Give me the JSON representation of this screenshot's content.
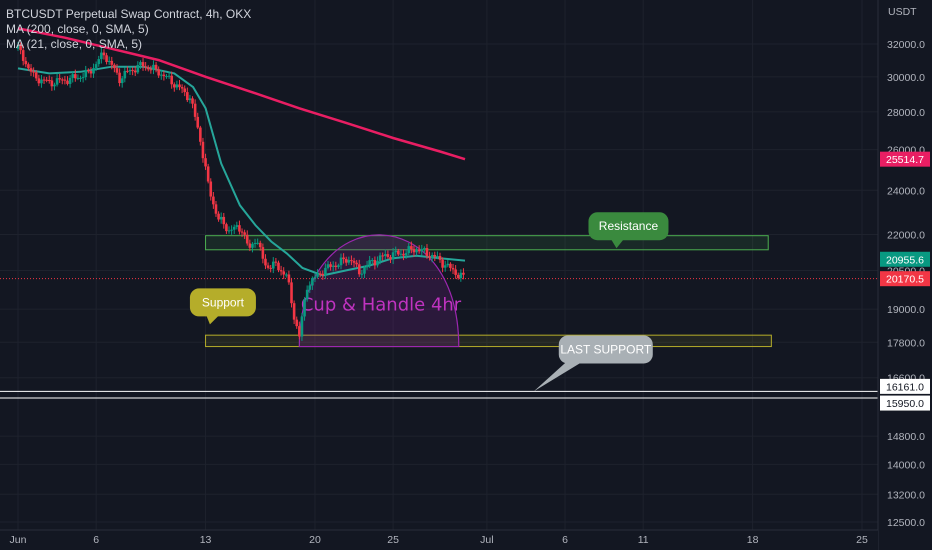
{
  "legend": {
    "symbol": "BTCUSDT Perpetual Swap Contract, 4h, OKX",
    "ma200": "MA (200, close, 0, SMA, 5)",
    "ma21": "MA (21, close, 0, SMA, 5)"
  },
  "price_axis": {
    "currency": "USDT",
    "ticks": [
      {
        "label": "32000.0",
        "value": 32000
      },
      {
        "label": "30000.0",
        "value": 30000
      },
      {
        "label": "28000.0",
        "value": 28000
      },
      {
        "label": "26000.0",
        "value": 26000
      },
      {
        "label": "24000.0",
        "value": 24000
      },
      {
        "label": "22000.0",
        "value": 22000
      },
      {
        "label": "20500.0",
        "value": 20500
      },
      {
        "label": "19000.0",
        "value": 19000
      },
      {
        "label": "17800.0",
        "value": 17800
      },
      {
        "label": "16600.0",
        "value": 16600
      },
      {
        "label": "14800.0",
        "value": 14800
      },
      {
        "label": "14000.0",
        "value": 14000
      },
      {
        "label": "13200.0",
        "value": 13200
      },
      {
        "label": "12500.0",
        "value": 12500
      }
    ],
    "badges": [
      {
        "label": "25514.7",
        "value": 25514.7,
        "bg": "#e91e63",
        "fg": "#ffffff"
      },
      {
        "label": "20955.6",
        "value": 20955.6,
        "bg": "#089981",
        "fg": "#ffffff"
      },
      {
        "label": "20170.5",
        "value": 20170.5,
        "bg": "#f23645",
        "fg": "#ffffff"
      },
      {
        "label": "16161.0",
        "value": 16161.0,
        "bg": "#ffffff",
        "fg": "#131722"
      },
      {
        "label": "15950.0",
        "value": 15950.0,
        "bg": "#ffffff",
        "fg": "#131722"
      }
    ]
  },
  "time_axis": {
    "ticks": [
      {
        "label": "Jun",
        "day": 1
      },
      {
        "label": "6",
        "day": 6
      },
      {
        "label": "13",
        "day": 13
      },
      {
        "label": "20",
        "day": 20
      },
      {
        "label": "25",
        "day": 25
      },
      {
        "label": "Jul",
        "day": 31
      },
      {
        "label": "6",
        "day": 36
      },
      {
        "label": "11",
        "day": 41
      },
      {
        "label": "18",
        "day": 48
      },
      {
        "label": "25",
        "day": 55
      }
    ]
  },
  "annotations": {
    "resistance": "Resistance",
    "support": "Support",
    "last_support": "LAST SUPPORT",
    "pattern": "Cup & Handle 4hr"
  },
  "levels": {
    "resistance_zone": [
      21350,
      21950
    ],
    "support_zone": [
      17650,
      18050
    ],
    "last_support_lines": [
      16161.0,
      15950.0
    ],
    "current_price": 20170.5
  },
  "colors": {
    "background": "#131722",
    "up": "#089981",
    "down": "#f23645",
    "ma200": "#e91e63",
    "ma21": "#26a69a",
    "resistance": "#3a8a3e",
    "support": "#b5ad2a",
    "last_support": "#a9b0b5",
    "cup": "#9c27b0"
  },
  "chart_data": {
    "type": "candlestick",
    "title": "BTCUSDT Perpetual Swap Contract, 4h, OKX",
    "ylabel": "USDT",
    "ylim": [
      12500,
      33600
    ],
    "scale": "log",
    "x_unit": "day of June 2022 (4h candles)",
    "xlim": [
      0,
      57.7
    ],
    "price_path": [
      [
        1.0,
        31700
      ],
      [
        2.0,
        30000
      ],
      [
        3.0,
        29650
      ],
      [
        4.5,
        29900
      ],
      [
        5.5,
        30200
      ],
      [
        6.5,
        31400
      ],
      [
        7.5,
        29900
      ],
      [
        8.2,
        30400
      ],
      [
        9.0,
        30700
      ],
      [
        10.0,
        30300
      ],
      [
        11.0,
        29600
      ],
      [
        12.0,
        28800
      ],
      [
        12.6,
        26800
      ],
      [
        13.2,
        24100
      ],
      [
        13.8,
        22700
      ],
      [
        14.5,
        22200
      ],
      [
        15.3,
        22300
      ],
      [
        15.8,
        21300
      ],
      [
        16.2,
        21900
      ],
      [
        16.8,
        20700
      ],
      [
        17.5,
        20700
      ],
      [
        18.2,
        20300
      ],
      [
        18.6,
        18900
      ],
      [
        19.0,
        18000
      ],
      [
        19.5,
        19900
      ],
      [
        20.5,
        20500
      ],
      [
        21.5,
        20800
      ],
      [
        22.3,
        21000
      ],
      [
        22.8,
        20400
      ],
      [
        23.5,
        20800
      ],
      [
        24.5,
        21100
      ],
      [
        25.5,
        21200
      ],
      [
        26.5,
        21400
      ],
      [
        27.5,
        21100
      ],
      [
        28.0,
        20900
      ],
      [
        28.8,
        20500
      ],
      [
        29.6,
        20170
      ]
    ],
    "ma21": [
      [
        1.0,
        30500
      ],
      [
        3.0,
        30200
      ],
      [
        5.0,
        30300
      ],
      [
        7.0,
        30600
      ],
      [
        9.0,
        30600
      ],
      [
        11.0,
        30200
      ],
      [
        12.2,
        29400
      ],
      [
        13.0,
        28200
      ],
      [
        14.0,
        25300
      ],
      [
        15.2,
        23300
      ],
      [
        16.2,
        22400
      ],
      [
        17.2,
        21700
      ],
      [
        18.2,
        21200
      ],
      [
        19.2,
        20600
      ],
      [
        20.5,
        20300
      ],
      [
        22.0,
        20500
      ],
      [
        23.5,
        20700
      ],
      [
        25.0,
        21000
      ],
      [
        26.5,
        21100
      ],
      [
        28.0,
        21000
      ],
      [
        29.6,
        20900
      ]
    ],
    "ma200": [
      [
        1.0,
        33000
      ],
      [
        4.0,
        32400
      ],
      [
        7.0,
        31700
      ],
      [
        10.0,
        31000
      ],
      [
        13.0,
        30000
      ],
      [
        16.0,
        29100
      ],
      [
        19.0,
        28200
      ],
      [
        22.0,
        27400
      ],
      [
        25.0,
        26600
      ],
      [
        28.0,
        25900
      ],
      [
        29.6,
        25514.7
      ]
    ]
  }
}
